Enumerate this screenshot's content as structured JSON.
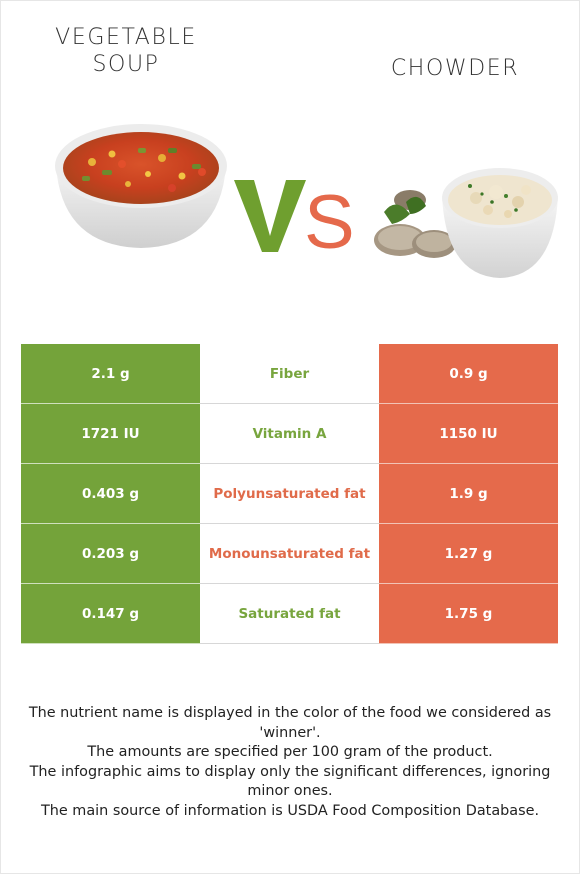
{
  "header": {
    "left_title_lines": [
      "VEGETABLE",
      "SOUP"
    ],
    "right_title_lines": [
      "CHOWDER"
    ],
    "vs_text": "VS"
  },
  "colors": {
    "winner_left": "#74a33a",
    "winner_right": "#e56a4b",
    "vs_v": "#6f9f2f",
    "vs_s": "#e5694b"
  },
  "comparison": {
    "rows": [
      {
        "left": "2.1 g",
        "nutrient": "Fiber",
        "right": "0.9 g",
        "winner": "left"
      },
      {
        "left": "1721 IU",
        "nutrient": "Vitamin A",
        "right": "1150 IU",
        "winner": "left"
      },
      {
        "left": "0.403 g",
        "nutrient": "Polyunsaturated fat",
        "right": "1.9 g",
        "winner": "right"
      },
      {
        "left": "0.203 g",
        "nutrient": "Monounsaturated fat",
        "right": "1.27 g",
        "winner": "right"
      },
      {
        "left": "0.147 g",
        "nutrient": "Saturated fat",
        "right": "1.75 g",
        "winner": "left"
      }
    ]
  },
  "footer": {
    "lines": [
      "The nutrient name is displayed in the color of the food we considered as 'winner'.",
      "The amounts are specified per 100 gram of the product.",
      "The infographic aims to display only the significant differences, ignoring minor ones.",
      "The main source of information is USDA Food Composition Database."
    ]
  }
}
